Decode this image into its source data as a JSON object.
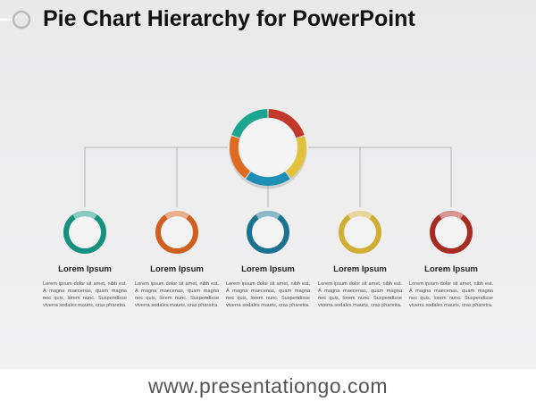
{
  "title": "Pie Chart Hierarchy for PowerPoint",
  "items": [
    {
      "heading": "Lorem Ipsum",
      "text": "Lorem ipsum dolor sit amet, nibh est. A magna maecenas, quam magna nec quis, lorem nunc. Suspendisse viverra sodales mauris, cras pharetra."
    },
    {
      "heading": "Lorem Ipsum",
      "text": "Lorem ipsum dolor sit amet, nibh est. A magna maecenas, quam magna nec quis, lorem nunc. Suspendisse viverra sodales mauris, cras pharetra."
    },
    {
      "heading": "Lorem Ipsum",
      "text": "Lorem ipsum dolor sit amet, nibh est. A magna maecenas, quam magna nec quis, lorem nunc. Suspendisse viverra sodales mauris, cras pharetra."
    },
    {
      "heading": "Lorem Ipsum",
      "text": "Lorem ipsum dolor sit amet, nibh est. A magna maecenas, quam magna nec quis, lorem nunc. Suspendisse viverra sodales mauris, cras pharetra."
    },
    {
      "heading": "Lorem Ipsum",
      "text": "Lorem ipsum dolor sit amet, nibh est. A magna maecenas, quam magna nec quis, lorem nunc. Suspendisse viverra sodales mauris, cras pharetra."
    }
  ],
  "footer": {
    "url": "www.presentationgo.com"
  }
}
